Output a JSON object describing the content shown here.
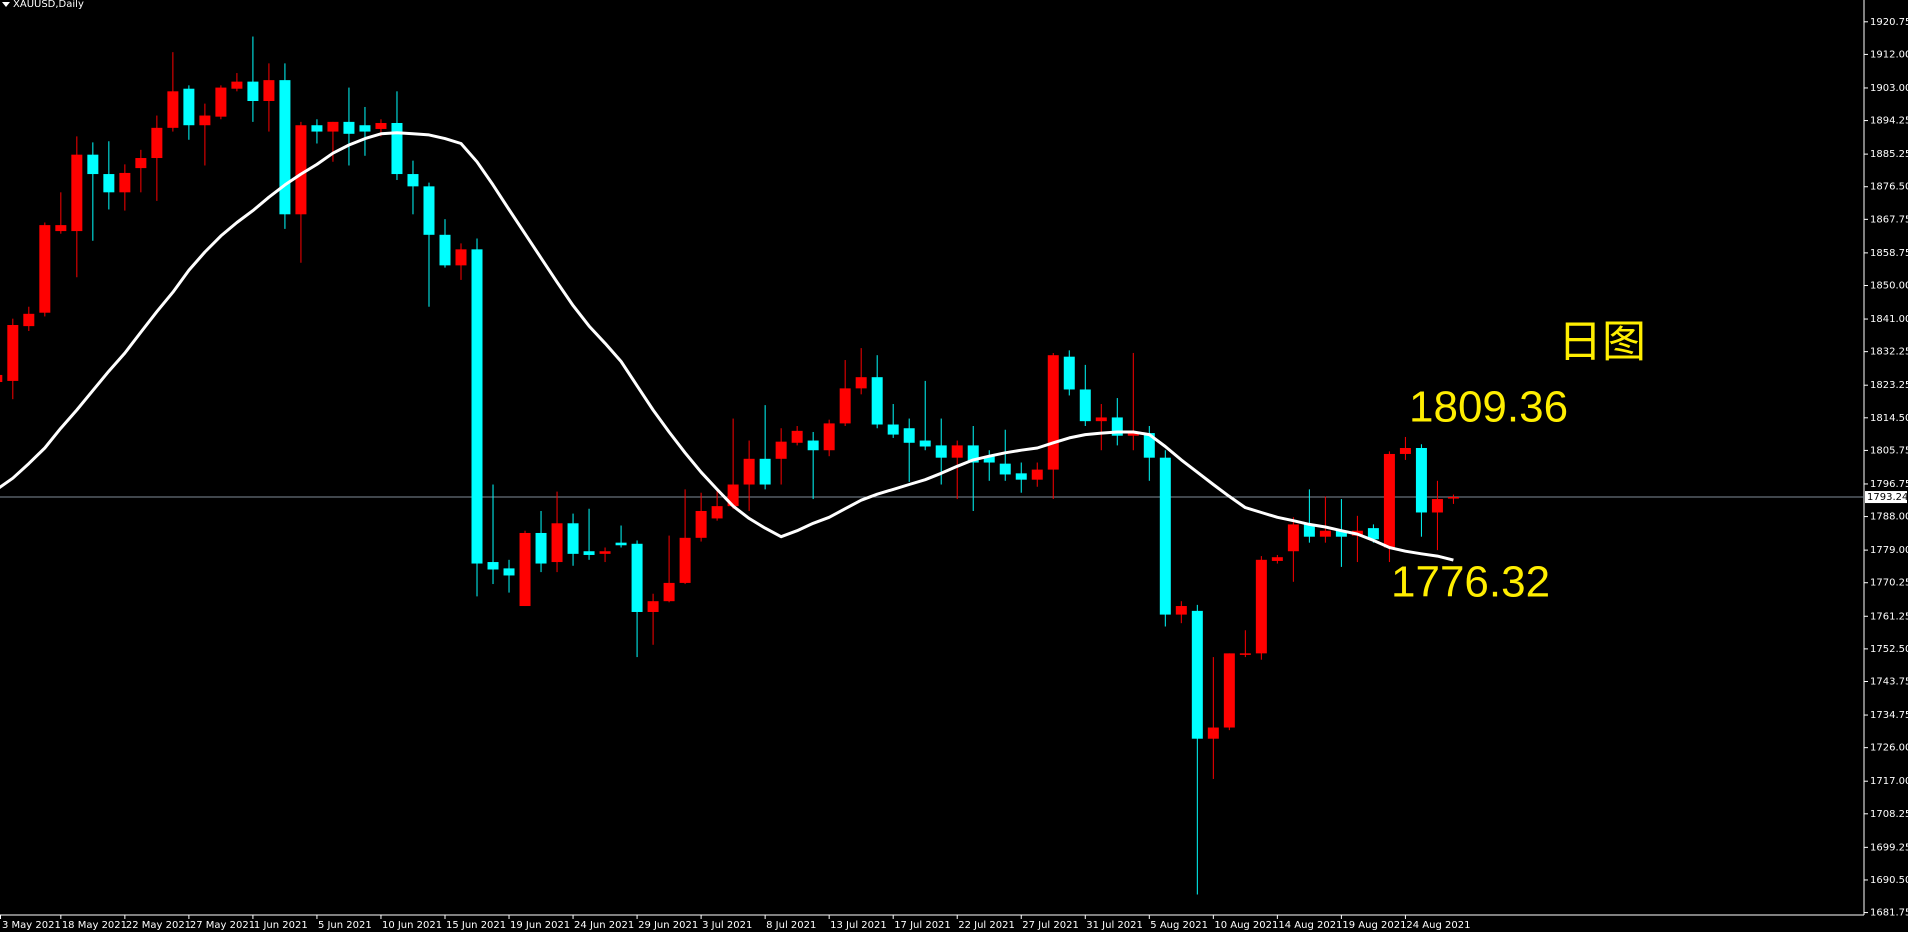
{
  "chart_data": {
    "type": "candlestick",
    "title": "XAUUSD,Daily",
    "annotations": [
      {
        "text": "日图"
      },
      {
        "text": "1809.36"
      },
      {
        "text": "1776.32"
      }
    ],
    "last_price": 1793.24,
    "up_color": "#ff0000",
    "down_color": "#00ffff",
    "ma": {
      "color": "#ffffff",
      "values": [
        1795.3,
        1798.3,
        1802.2,
        1806.4,
        1811.7,
        1816.6,
        1821.8,
        1827.0,
        1831.9,
        1837.5,
        1843.0,
        1848.2,
        1854.1,
        1859.0,
        1863.3,
        1866.9,
        1870.1,
        1873.7,
        1877.0,
        1879.9,
        1882.5,
        1885.5,
        1887.7,
        1889.4,
        1890.7,
        1891.0,
        1890.7,
        1890.4,
        1889.4,
        1888.1,
        1883.2,
        1877.0,
        1870.4,
        1863.9,
        1857.4,
        1850.9,
        1844.6,
        1839.1,
        1834.5,
        1829.6,
        1823.1,
        1816.6,
        1810.7,
        1805.1,
        1799.9,
        1795.3,
        1790.8,
        1787.5,
        1784.9,
        1782.6,
        1784.2,
        1786.2,
        1787.8,
        1790.1,
        1792.4,
        1794.0,
        1795.3,
        1796.6,
        1797.9,
        1799.6,
        1801.5,
        1803.2,
        1804.2,
        1805.1,
        1805.8,
        1806.4,
        1807.8,
        1809.1,
        1810.0,
        1810.4,
        1810.7,
        1810.7,
        1810.0,
        1806.8,
        1803.2,
        1799.9,
        1796.6,
        1793.4,
        1790.4,
        1789.1,
        1787.8,
        1786.9,
        1785.9,
        1785.2,
        1784.2,
        1783.3,
        1781.6,
        1779.7,
        1778.7,
        1778.0,
        1777.4,
        1776.32
      ]
    },
    "categories": [
      "3 May 2021",
      null,
      null,
      null,
      "18 May 2021",
      null,
      null,
      null,
      "22 May 2021",
      null,
      null,
      null,
      "27 May 2021",
      null,
      null,
      null,
      "1 Jun 2021",
      null,
      null,
      null,
      "5 Jun 2021",
      null,
      null,
      null,
      "10 Jun 2021",
      null,
      null,
      null,
      "15 Jun 2021",
      null,
      null,
      null,
      "19 Jun 2021",
      null,
      null,
      null,
      "24 Jun 2021",
      null,
      null,
      null,
      "29 Jun 2021",
      null,
      null,
      null,
      "3 Jul 2021",
      null,
      null,
      null,
      "8 Jul 2021",
      null,
      null,
      null,
      "13 Jul 2021",
      null,
      null,
      null,
      "17 Jul 2021",
      null,
      null,
      null,
      "22 Jul 2021",
      null,
      null,
      null,
      "27 Jul 2021",
      null,
      null,
      null,
      "31 Jul 2021",
      null,
      null,
      null,
      "5 Aug 2021",
      null,
      null,
      null,
      "10 Aug 2021",
      null,
      null,
      null,
      "14 Aug 2021",
      null,
      null,
      null,
      "19 Aug 2021",
      null,
      null,
      null,
      "24 Aug 2021",
      null,
      null,
      null
    ],
    "open": [
      1824.1,
      1824.4,
      1839.1,
      1842.7,
      1864.6,
      1864.6,
      1885.1,
      1879.9,
      1875.0,
      1881.5,
      1884.2,
      1892.3,
      1902.8,
      1893.0,
      1895.3,
      1902.8,
      1904.7,
      1899.5,
      1905.1,
      1869.1,
      1893.0,
      1891.3,
      1893.9,
      1893.0,
      1892.0,
      1893.6,
      1879.9,
      1876.6,
      1863.6,
      1855.4,
      1859.7,
      1775.8,
      1774.1,
      1764.0,
      1783.6,
      1775.8,
      1786.2,
      1778.7,
      1778.0,
      1781.0,
      1780.7,
      1762.4,
      1765.3,
      1770.2,
      1782.3,
      1787.5,
      1790.8,
      1796.6,
      1803.5,
      1803.5,
      1807.8,
      1808.4,
      1805.8,
      1813.0,
      1822.4,
      1825.4,
      1812.7,
      1811.7,
      1808.4,
      1807.1,
      1803.8,
      1807.1,
      1804.2,
      1802.2,
      1799.6,
      1797.9,
      1800.6,
      1830.9,
      1822.1,
      1813.6,
      1814.6,
      1809.7,
      1810.4,
      1803.8,
      1761.7,
      1762.7,
      1728.4,
      1731.4,
      1751.0,
      1751.3,
      1776.1,
      1778.7,
      1785.9,
      1782.6,
      1784.2,
      1782.9,
      1784.9,
      1779.7,
      1804.8,
      1806.4,
      1789.1,
      1793.0
    ],
    "high": [
      1828.7,
      1841.1,
      1844.3,
      1866.9,
      1875.0,
      1890.0,
      1888.4,
      1888.7,
      1882.5,
      1886.4,
      1895.6,
      1912.6,
      1903.7,
      1898.8,
      1903.7,
      1907.0,
      1916.8,
      1909.6,
      1909.6,
      1893.9,
      1894.6,
      1893.9,
      1903.1,
      1897.9,
      1894.6,
      1902.1,
      1883.5,
      1877.6,
      1867.8,
      1861.3,
      1862.6,
      1796.6,
      1776.4,
      1784.2,
      1789.5,
      1794.7,
      1788.8,
      1790.1,
      1779.7,
      1785.6,
      1781.6,
      1767.3,
      1782.9,
      1795.3,
      1794.4,
      1795.3,
      1814.3,
      1808.4,
      1817.9,
      1811.7,
      1812.3,
      1810.7,
      1814.0,
      1830.0,
      1833.2,
      1831.3,
      1818.2,
      1814.3,
      1824.4,
      1814.3,
      1808.4,
      1812.3,
      1805.8,
      1811.3,
      1802.5,
      1802.5,
      1831.9,
      1832.6,
      1828.7,
      1818.2,
      1819.8,
      1831.9,
      1812.3,
      1805.8,
      1765.3,
      1764.3,
      1750.3,
      1751.3,
      1757.5,
      1777.4,
      1777.7,
      1787.8,
      1795.3,
      1793.4,
      1792.7,
      1788.2,
      1785.9,
      1805.5,
      1809.36,
      1807.4,
      1797.6,
      1793.9
    ],
    "low": [
      1822.1,
      1819.5,
      1837.8,
      1841.7,
      1863.9,
      1852.2,
      1862.0,
      1870.4,
      1870.1,
      1875.0,
      1872.7,
      1891.3,
      1889.1,
      1882.2,
      1894.6,
      1902.1,
      1893.9,
      1891.3,
      1865.2,
      1856.1,
      1888.1,
      1883.2,
      1882.2,
      1884.8,
      1890.0,
      1878.3,
      1869.1,
      1844.3,
      1854.8,
      1851.5,
      1766.6,
      1769.9,
      1767.6,
      1764.0,
      1773.1,
      1773.1,
      1774.8,
      1776.4,
      1775.8,
      1779.7,
      1750.3,
      1753.6,
      1765.0,
      1769.9,
      1781.3,
      1786.9,
      1790.1,
      1789.5,
      1795.3,
      1796.6,
      1807.1,
      1792.7,
      1804.2,
      1812.3,
      1820.8,
      1811.7,
      1809.1,
      1797.3,
      1805.8,
      1796.6,
      1792.7,
      1789.5,
      1797.6,
      1797.6,
      1794.4,
      1796.0,
      1792.7,
      1820.5,
      1812.3,
      1805.8,
      1807.1,
      1805.8,
      1797.6,
      1758.5,
      1759.4,
      1686.6,
      1717.6,
      1730.7,
      1750.3,
      1749.6,
      1775.4,
      1770.5,
      1781.0,
      1781.0,
      1774.5,
      1775.8,
      1781.0,
      1775.8,
      1803.2,
      1782.6,
      1779.0,
      1791.4
    ],
    "close": [
      1826.0,
      1839.4,
      1842.4,
      1866.2,
      1866.2,
      1885.1,
      1879.9,
      1875.0,
      1880.2,
      1884.2,
      1892.3,
      1902.1,
      1893.0,
      1895.6,
      1903.1,
      1904.7,
      1899.5,
      1905.1,
      1869.1,
      1893.0,
      1891.3,
      1893.9,
      1890.7,
      1891.3,
      1893.6,
      1879.9,
      1876.6,
      1863.6,
      1855.4,
      1859.7,
      1775.4,
      1773.8,
      1772.2,
      1783.6,
      1775.4,
      1786.2,
      1778.0,
      1777.7,
      1778.7,
      1780.3,
      1762.4,
      1765.3,
      1770.2,
      1782.3,
      1789.5,
      1790.8,
      1796.6,
      1803.5,
      1796.6,
      1808.1,
      1811.0,
      1805.8,
      1813.0,
      1822.4,
      1825.4,
      1812.7,
      1810.0,
      1807.8,
      1806.8,
      1803.8,
      1807.1,
      1802.5,
      1802.5,
      1799.3,
      1797.9,
      1800.6,
      1831.3,
      1822.1,
      1813.6,
      1814.6,
      1809.7,
      1810.4,
      1803.8,
      1761.7,
      1764.0,
      1728.4,
      1731.4,
      1751.3,
      1751.3,
      1776.4,
      1777.1,
      1785.9,
      1782.6,
      1784.2,
      1782.6,
      1784.2,
      1781.9,
      1804.8,
      1806.4,
      1789.1,
      1792.7,
      1793.24
    ],
    "ylim": [
      1681.1,
      1926.6
    ],
    "yticks": [
      1920.75,
      {
        "value": 1912,
        "label": "1912.00"
      },
      {
        "value": 1903,
        "label": "1903.00"
      },
      1894.25,
      1885.25,
      {
        "value": 1876.5,
        "label": "1876.50"
      },
      1867.75,
      1858.75,
      {
        "value": 1850,
        "label": "1850.00"
      },
      {
        "value": 1841,
        "label": "1841.00"
      },
      1832.25,
      1823.25,
      {
        "value": 1814.5,
        "label": "1814.50"
      },
      1805.75,
      1796.75,
      {
        "value": 1788,
        "label": "1788.00"
      },
      {
        "value": 1779,
        "label": "1779.00"
      },
      1770.25,
      1761.25,
      {
        "value": 1752.5,
        "label": "1752.50"
      },
      1743.75,
      1734.75,
      {
        "value": 1726,
        "label": "1726.00"
      },
      {
        "value": 1717,
        "label": "1717.00"
      },
      1708.25,
      1699.25,
      {
        "value": 1690.5,
        "label": "1690.50"
      },
      1681.75
    ],
    "grid": false
  }
}
